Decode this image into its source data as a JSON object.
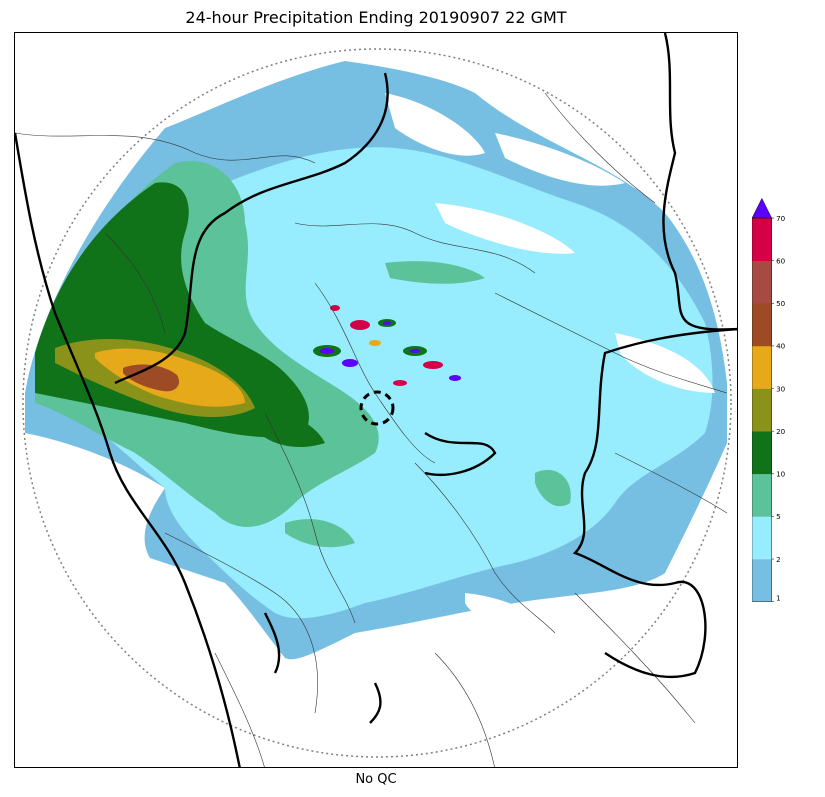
{
  "title": "24-hour Precipitation Ending 20190907 22 GMT",
  "xlabel": "No QC",
  "colorbar": {
    "unit": "",
    "ticks": [
      "1",
      "2",
      "5",
      "10",
      "20",
      "30",
      "40",
      "50",
      "60",
      "70"
    ],
    "bins": [
      {
        "from": 1,
        "to": 2,
        "color": "#76bfe2"
      },
      {
        "from": 2,
        "to": 5,
        "color": "#97ecfd"
      },
      {
        "from": 5,
        "to": 10,
        "color": "#5cc299"
      },
      {
        "from": 10,
        "to": 20,
        "color": "#10731a"
      },
      {
        "from": 20,
        "to": 30,
        "color": "#8b9219"
      },
      {
        "from": 30,
        "to": 40,
        "color": "#e5a919"
      },
      {
        "from": 40,
        "to": 50,
        "color": "#9d4b25"
      },
      {
        "from": 50,
        "to": 60,
        "color": "#a64a44"
      },
      {
        "from": 60,
        "to": 70,
        "color": "#d50045"
      }
    ],
    "extend_max_color": "#5b00ff"
  }
}
